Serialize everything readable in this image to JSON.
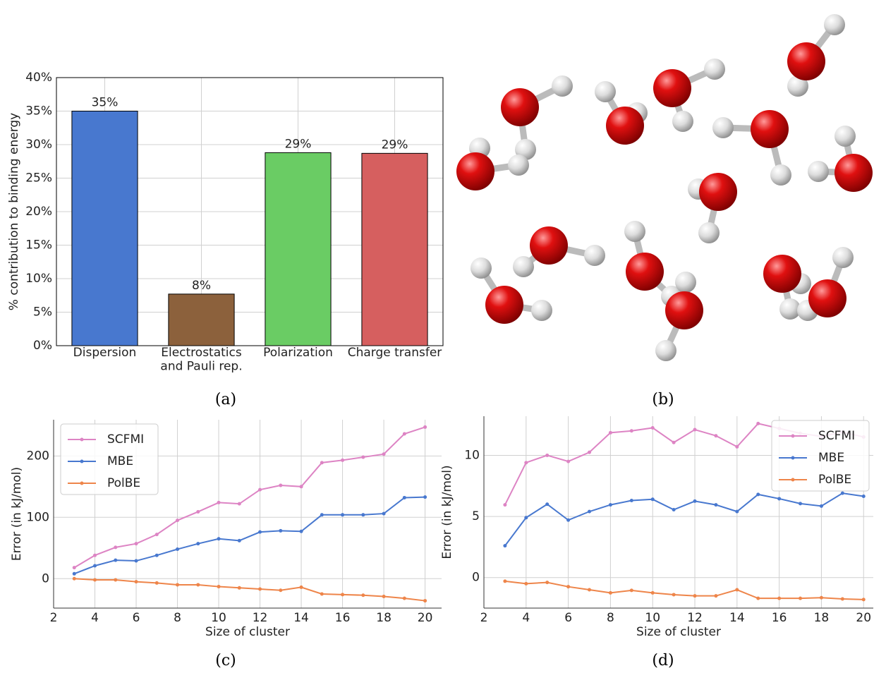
{
  "chart_data": [
    {
      "type": "bar",
      "caption": "(a)",
      "ylabel": "% contribution to binding energy",
      "categories": [
        "Dispersion",
        "Electrostatics\nand Pauli rep.",
        "Polarization",
        "Charge transfer"
      ],
      "values": [
        35,
        7.7,
        28.8,
        28.7
      ],
      "value_labels": [
        "35%",
        "8%",
        "29%",
        "29%"
      ],
      "colors": [
        "#4878cf",
        "#8c613c",
        "#6acc64",
        "#d65f5f"
      ],
      "ylim": [
        0,
        40
      ],
      "yticks": [
        {
          "value": 0,
          "label": "0%"
        },
        {
          "value": 5,
          "label": "5%"
        },
        {
          "value": 10,
          "label": "10%"
        },
        {
          "value": 15,
          "label": "15%"
        },
        {
          "value": 20,
          "label": "20%"
        },
        {
          "value": 25,
          "label": "25%"
        },
        {
          "value": 30,
          "label": "30%"
        },
        {
          "value": 35,
          "label": "35%"
        },
        {
          "value": 40,
          "label": "40%"
        }
      ],
      "grid": true
    },
    {
      "type": "line",
      "caption": "(c)",
      "xlabel": "Size of cluster",
      "ylabel": "Error (in kJ/mol)",
      "x": [
        3,
        4,
        5,
        6,
        7,
        8,
        9,
        10,
        11,
        12,
        13,
        14,
        15,
        16,
        17,
        18,
        19,
        20
      ],
      "series": [
        {
          "name": "SCFMI",
          "color": "#dd84c4",
          "values": [
            18,
            38,
            51,
            57,
            72,
            95,
            109,
            124,
            122,
            145,
            152,
            150,
            189,
            193,
            198,
            203,
            236,
            247
          ]
        },
        {
          "name": "MBE",
          "color": "#4878cf",
          "values": [
            8,
            21,
            30,
            29,
            38,
            48,
            57,
            65,
            62,
            76,
            78,
            77,
            104,
            104,
            104,
            106,
            132,
            133
          ]
        },
        {
          "name": "PolBE",
          "color": "#ee854a",
          "values": [
            0,
            -2,
            -2,
            -5,
            -7,
            -10,
            -10,
            -13,
            -15,
            -17,
            -19,
            -14,
            -25,
            -26,
            -27,
            -29,
            -32,
            -36
          ]
        }
      ],
      "xlim": [
        2,
        20.8
      ],
      "ylim": [
        -48,
        259
      ],
      "xticks": [
        2,
        4,
        6,
        8,
        10,
        12,
        14,
        16,
        18,
        20
      ],
      "yticks": [
        0,
        100,
        200
      ],
      "grid": true,
      "legend": "upper left"
    },
    {
      "type": "line",
      "caption": "(d)",
      "xlabel": "Size of cluster",
      "ylabel": "Error (in kJ/mol)",
      "x": [
        3,
        4,
        5,
        6,
        7,
        8,
        9,
        10,
        11,
        12,
        13,
        14,
        15,
        16,
        17,
        18,
        19,
        20
      ],
      "series": [
        {
          "name": "SCFMI",
          "color": "#dd84c4",
          "values": [
            5.95,
            9.4,
            10.0,
            9.5,
            10.25,
            11.85,
            12.0,
            12.25,
            11.05,
            12.1,
            11.6,
            10.7,
            12.6,
            12.2,
            11.8,
            11.55,
            11.9,
            11.5
          ]
        },
        {
          "name": "MBE",
          "color": "#4878cf",
          "values": [
            2.6,
            4.9,
            6.0,
            4.7,
            5.4,
            5.95,
            6.3,
            6.4,
            5.55,
            6.25,
            5.95,
            5.4,
            6.8,
            6.45,
            6.05,
            5.85,
            6.9,
            6.65
          ]
        },
        {
          "name": "PolBE",
          "color": "#ee854a",
          "values": [
            -0.3,
            -0.5,
            -0.4,
            -0.75,
            -1.0,
            -1.25,
            -1.05,
            -1.25,
            -1.4,
            -1.5,
            -1.5,
            -1.0,
            -1.7,
            -1.7,
            -1.7,
            -1.65,
            -1.75,
            -1.8
          ]
        }
      ],
      "xlim": [
        2,
        20.46
      ],
      "ylim": [
        -2.5,
        13.2
      ],
      "xticks": [
        2,
        4,
        6,
        8,
        10,
        12,
        14,
        16,
        18,
        20
      ],
      "yticks": [
        0,
        5,
        10
      ],
      "grid": true,
      "legend": "upper right"
    }
  ],
  "image_panel": {
    "caption": "(b)"
  }
}
